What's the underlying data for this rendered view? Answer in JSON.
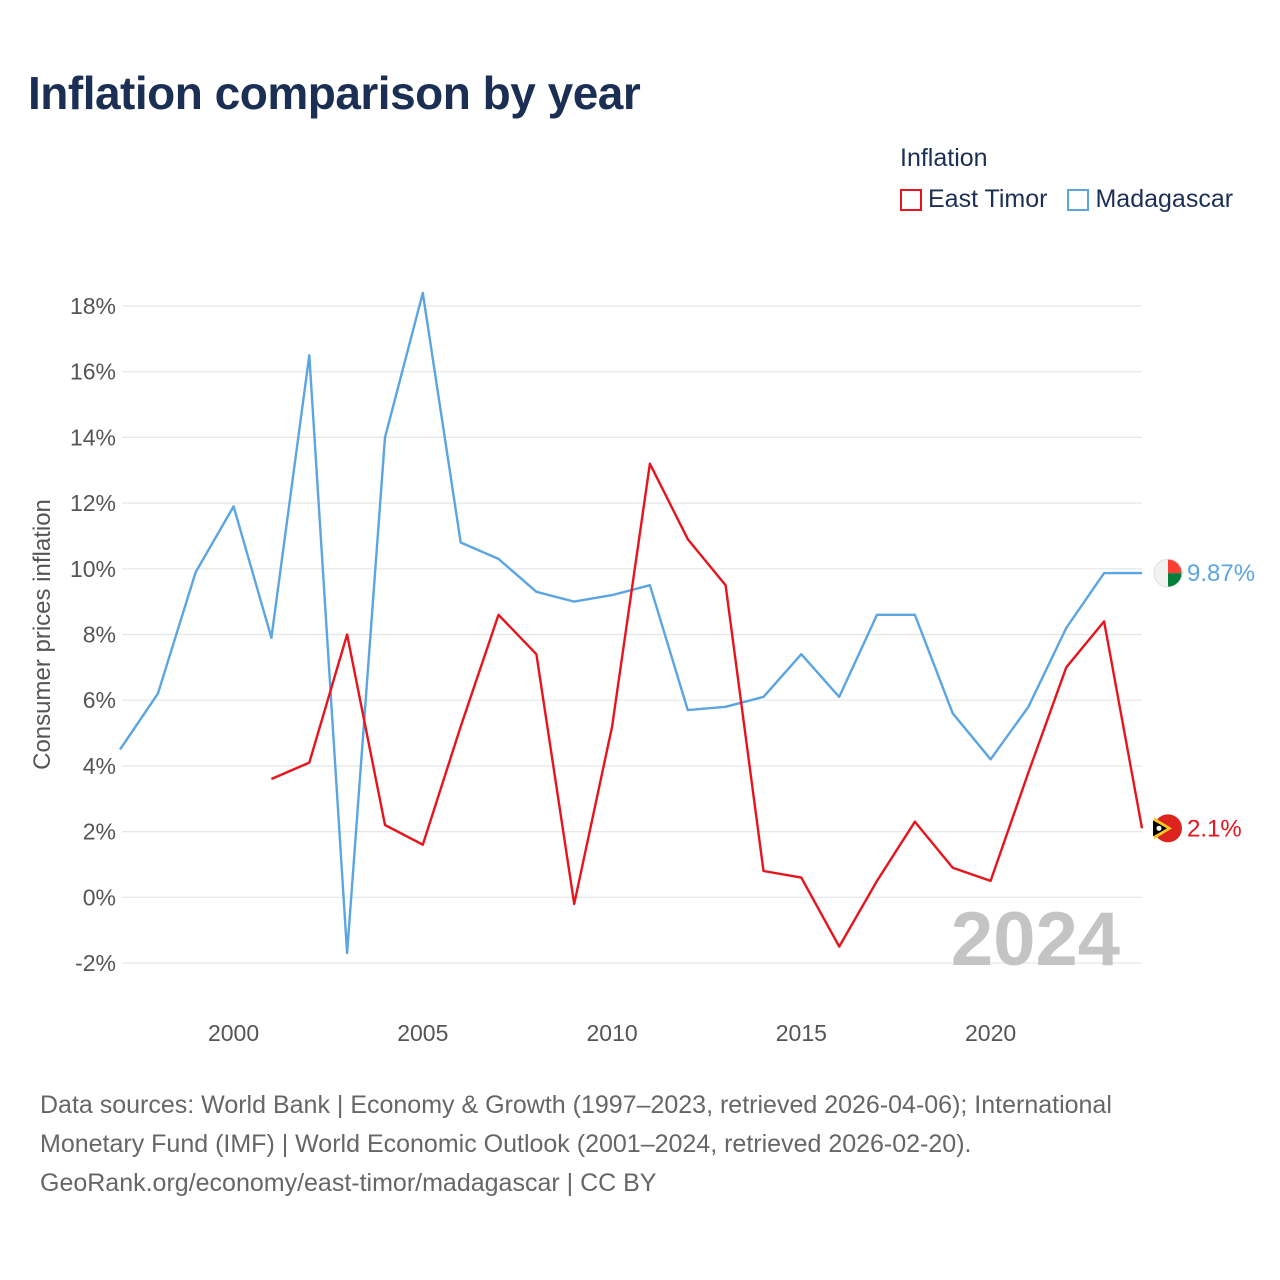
{
  "title": "Inflation comparison by year",
  "legend": {
    "title": "Inflation",
    "items": [
      {
        "label": "East Timor",
        "color": "#e8141c"
      },
      {
        "label": "Madagascar",
        "color": "#5aa5e2"
      }
    ]
  },
  "watermark": "2024",
  "footer": {
    "line1": "Data sources: World Bank | Economy & Growth (1997–2023, retrieved 2026-04-06); International",
    "line2": "Monetary Fund (IMF) | World Economic Outlook (2001–2024, retrieved 2026-02-20).",
    "line3": "GeoRank.org/economy/east-timor/madagascar | CC BY"
  },
  "chart_data": {
    "type": "line",
    "title": "Inflation comparison by year",
    "ylabel": "Consumer prices inflation",
    "xlabel": "",
    "xlim": [
      1997,
      2024
    ],
    "ylim": [
      -2,
      18
    ],
    "x_ticks": [
      2000,
      2005,
      2010,
      2015,
      2020
    ],
    "x_tick_labels": [
      "2000",
      "2005",
      "2010",
      "2015",
      "2020"
    ],
    "y_ticks": [
      -2,
      0,
      2,
      4,
      6,
      8,
      10,
      12,
      14,
      16,
      18
    ],
    "y_tick_labels": [
      "-2%",
      "0%",
      "2%",
      "4%",
      "6%",
      "8%",
      "10%",
      "12%",
      "14%",
      "16%",
      "18%"
    ],
    "grid": true,
    "legend_position": "top-right",
    "series": [
      {
        "name": "East Timor",
        "color": "#e8141c",
        "end_label": "2.1%",
        "points": [
          [
            2001,
            3.6
          ],
          [
            2002,
            4.1
          ],
          [
            2003,
            8.0
          ],
          [
            2004,
            2.2
          ],
          [
            2005,
            1.6
          ],
          [
            2006,
            5.2
          ],
          [
            2007,
            8.6
          ],
          [
            2008,
            7.4
          ],
          [
            2009,
            -0.2
          ],
          [
            2010,
            5.2
          ],
          [
            2011,
            13.2
          ],
          [
            2012,
            10.9
          ],
          [
            2013,
            9.5
          ],
          [
            2014,
            0.8
          ],
          [
            2015,
            0.6
          ],
          [
            2016,
            -1.5
          ],
          [
            2017,
            0.5
          ],
          [
            2018,
            2.3
          ],
          [
            2019,
            0.9
          ],
          [
            2020,
            0.5
          ],
          [
            2021,
            3.8
          ],
          [
            2022,
            7.0
          ],
          [
            2023,
            8.4
          ],
          [
            2024,
            2.1
          ]
        ]
      },
      {
        "name": "Madagascar",
        "color": "#5aa5e2",
        "end_label": "9.87%",
        "points": [
          [
            1997,
            4.5
          ],
          [
            1998,
            6.2
          ],
          [
            1999,
            9.9
          ],
          [
            2000,
            11.9
          ],
          [
            2001,
            7.9
          ],
          [
            2002,
            16.5
          ],
          [
            2003,
            -1.7
          ],
          [
            2004,
            14.0
          ],
          [
            2005,
            18.4
          ],
          [
            2006,
            10.8
          ],
          [
            2007,
            10.3
          ],
          [
            2008,
            9.3
          ],
          [
            2009,
            9.0
          ],
          [
            2010,
            9.2
          ],
          [
            2011,
            9.5
          ],
          [
            2012,
            5.7
          ],
          [
            2013,
            5.8
          ],
          [
            2014,
            6.1
          ],
          [
            2015,
            7.4
          ],
          [
            2016,
            6.1
          ],
          [
            2017,
            8.6
          ],
          [
            2018,
            8.6
          ],
          [
            2019,
            5.6
          ],
          [
            2020,
            4.2
          ],
          [
            2021,
            5.8
          ],
          [
            2022,
            8.2
          ],
          [
            2023,
            9.87
          ],
          [
            2024,
            9.87
          ]
        ]
      }
    ]
  }
}
